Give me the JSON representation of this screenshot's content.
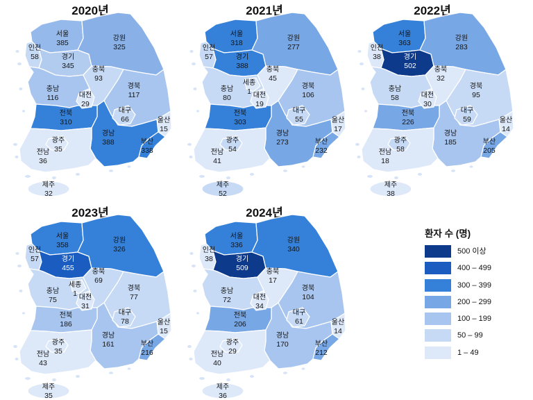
{
  "legend": {
    "title": "환자 수 (명)",
    "bins": [
      {
        "label": "500 이상",
        "min": 500,
        "color": "#0d3a8a"
      },
      {
        "label": "400 – 499",
        "min": 400,
        "color": "#1a5cc0"
      },
      {
        "label": "300 – 399",
        "min": 300,
        "color": "#3581d9"
      },
      {
        "label": "200 – 299",
        "min": 200,
        "color": "#78a7e6"
      },
      {
        "label": "100 – 199",
        "min": 100,
        "color": "#a7c5ef"
      },
      {
        "label": "50 – 99",
        "min": 50,
        "color": "#c6daf5"
      },
      {
        "label": "1 – 49",
        "min": 1,
        "color": "#dde8f9"
      }
    ]
  },
  "maps": [
    {
      "year_label": "2020년",
      "regions": [
        {
          "name": "서울",
          "value": 385,
          "fill": "#95b9ea"
        },
        {
          "name": "인천",
          "value": 58
        },
        {
          "name": "경기",
          "value": 345,
          "fill": "#b2ccf0"
        },
        {
          "name": "강원",
          "value": 325,
          "fill": "#8ab1e7"
        },
        {
          "name": "충북",
          "value": 93
        },
        {
          "name": "충남",
          "value": 116
        },
        {
          "name": "대전",
          "value": 29
        },
        {
          "name": "경북",
          "value": 117
        },
        {
          "name": "대구",
          "value": 66
        },
        {
          "name": "전북",
          "value": 310
        },
        {
          "name": "울산",
          "value": 15
        },
        {
          "name": "경남",
          "value": 388
        },
        {
          "name": "부산",
          "value": 338
        },
        {
          "name": "광주",
          "value": 35
        },
        {
          "name": "전남",
          "value": 36
        },
        {
          "name": "제주",
          "value": 32
        }
      ]
    },
    {
      "year_label": "2021년",
      "regions": [
        {
          "name": "서울",
          "value": 318
        },
        {
          "name": "인천",
          "value": 57
        },
        {
          "name": "경기",
          "value": 388
        },
        {
          "name": "강원",
          "value": 277
        },
        {
          "name": "충북",
          "value": 45
        },
        {
          "name": "충남",
          "value": 80
        },
        {
          "name": "세종",
          "value": 1
        },
        {
          "name": "대전",
          "value": 19
        },
        {
          "name": "경북",
          "value": 106
        },
        {
          "name": "대구",
          "value": 55
        },
        {
          "name": "전북",
          "value": 303
        },
        {
          "name": "울산",
          "value": 17
        },
        {
          "name": "경남",
          "value": 273
        },
        {
          "name": "부산",
          "value": 232
        },
        {
          "name": "광주",
          "value": 54
        },
        {
          "name": "전남",
          "value": 41
        },
        {
          "name": "제주",
          "value": 52
        }
      ]
    },
    {
      "year_label": "2022년",
      "regions": [
        {
          "name": "서울",
          "value": 363
        },
        {
          "name": "인천",
          "value": 38
        },
        {
          "name": "경기",
          "value": 502
        },
        {
          "name": "강원",
          "value": 283
        },
        {
          "name": "충북",
          "value": 32
        },
        {
          "name": "충남",
          "value": 58
        },
        {
          "name": "대전",
          "value": 30
        },
        {
          "name": "경북",
          "value": 95
        },
        {
          "name": "대구",
          "value": 59
        },
        {
          "name": "전북",
          "value": 226
        },
        {
          "name": "울산",
          "value": 14
        },
        {
          "name": "경남",
          "value": 185
        },
        {
          "name": "부산",
          "value": 205
        },
        {
          "name": "광주",
          "value": 58
        },
        {
          "name": "전남",
          "value": 18
        },
        {
          "name": "제주",
          "value": 38
        }
      ]
    },
    {
      "year_label": "2023년",
      "regions": [
        {
          "name": "서울",
          "value": 358
        },
        {
          "name": "인천",
          "value": 57
        },
        {
          "name": "경기",
          "value": 455
        },
        {
          "name": "강원",
          "value": 326
        },
        {
          "name": "충북",
          "value": 69
        },
        {
          "name": "충남",
          "value": 75
        },
        {
          "name": "세종",
          "value": 1
        },
        {
          "name": "대전",
          "value": 31
        },
        {
          "name": "경북",
          "value": 77
        },
        {
          "name": "대구",
          "value": 78
        },
        {
          "name": "전북",
          "value": 186
        },
        {
          "name": "울산",
          "value": 15
        },
        {
          "name": "경남",
          "value": 161
        },
        {
          "name": "부산",
          "value": 216
        },
        {
          "name": "광주",
          "value": 35
        },
        {
          "name": "전남",
          "value": 43
        },
        {
          "name": "제주",
          "value": 35
        }
      ]
    },
    {
      "year_label": "2024년",
      "regions": [
        {
          "name": "서울",
          "value": 336
        },
        {
          "name": "인천",
          "value": 38
        },
        {
          "name": "경기",
          "value": 509
        },
        {
          "name": "강원",
          "value": 340
        },
        {
          "name": "충북",
          "value": 17
        },
        {
          "name": "충남",
          "value": 72
        },
        {
          "name": "대전",
          "value": 34
        },
        {
          "name": "경북",
          "value": 104
        },
        {
          "name": "대구",
          "value": 61
        },
        {
          "name": "전북",
          "value": 206
        },
        {
          "name": "울산",
          "value": 14
        },
        {
          "name": "경남",
          "value": 170
        },
        {
          "name": "부산",
          "value": 212
        },
        {
          "name": "광주",
          "value": 29
        },
        {
          "name": "전남",
          "value": 40
        },
        {
          "name": "제주",
          "value": 36
        }
      ]
    }
  ]
}
